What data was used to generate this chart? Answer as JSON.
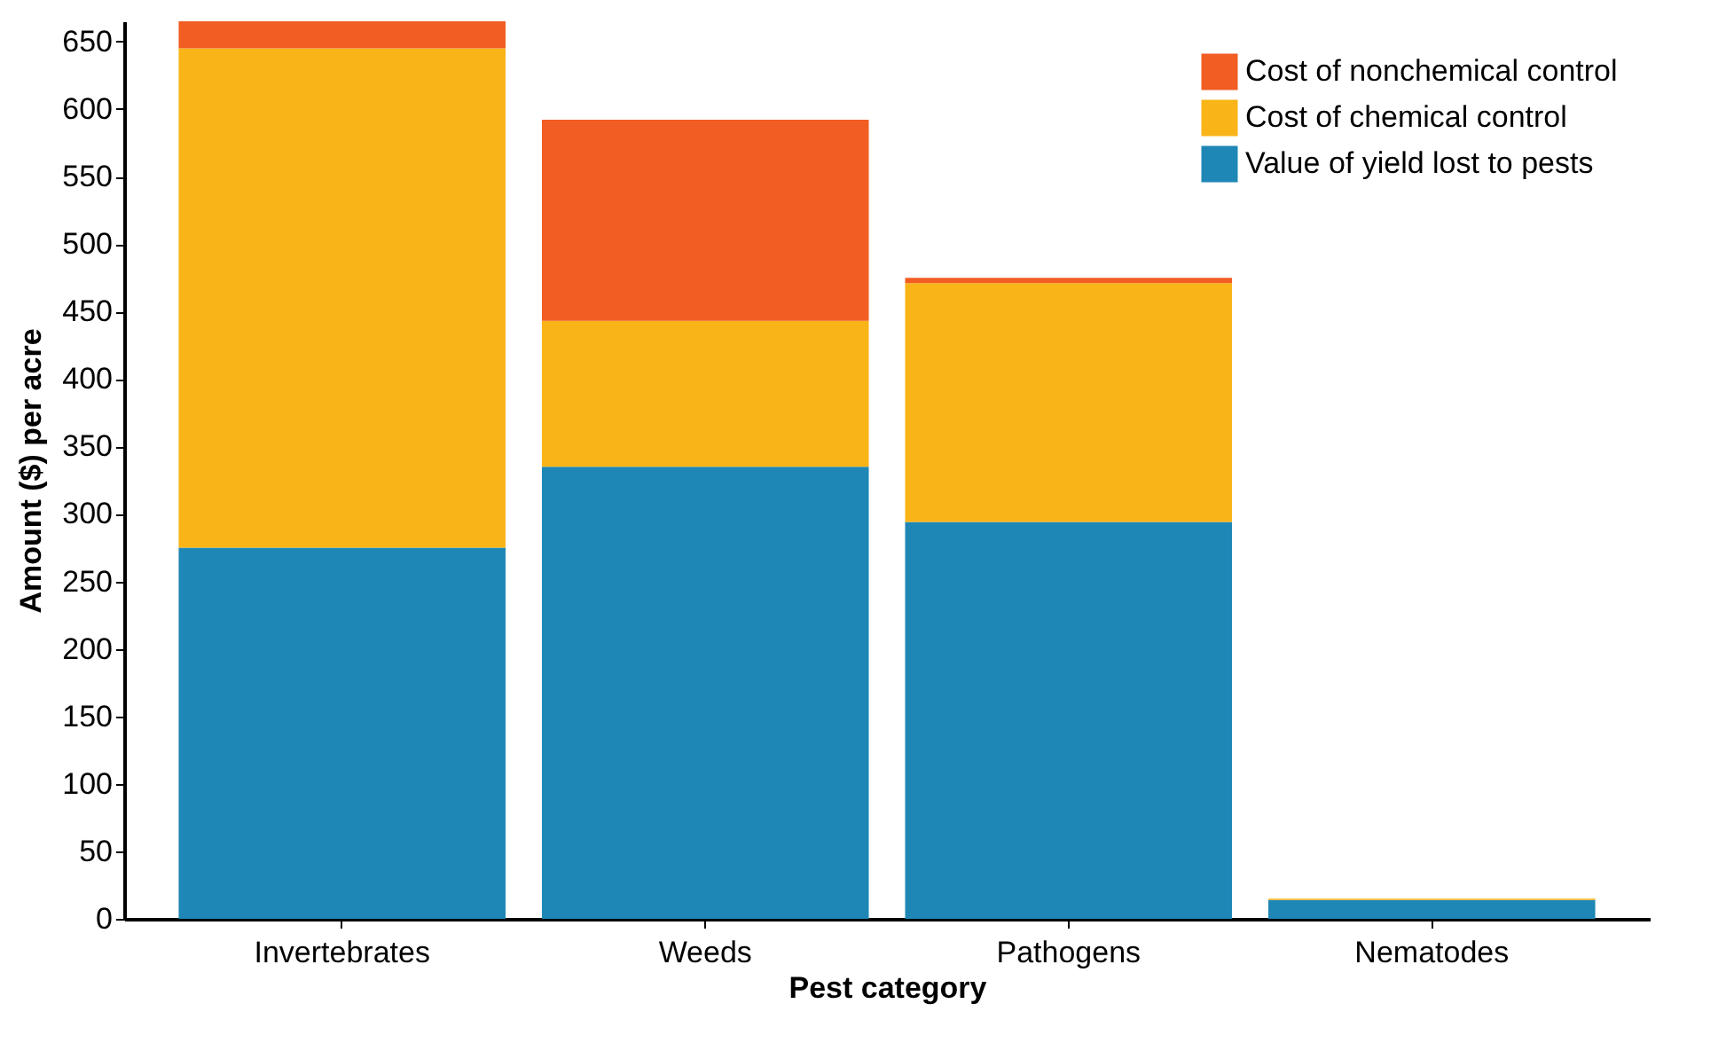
{
  "chart_data": {
    "type": "bar",
    "stacked": true,
    "xlabel": "Pest category",
    "ylabel": "Amount ($) per acre",
    "categories": [
      "Invertebrates",
      "Weeds",
      "Pathogens",
      "Nematodes"
    ],
    "series": [
      {
        "name": "Value of yield lost to pests",
        "color": "#1f87b6",
        "values": [
          275,
          335,
          294,
          14
        ]
      },
      {
        "name": "Cost of chemical control",
        "color": "#f9b418",
        "values": [
          370,
          108,
          177,
          1
        ]
      },
      {
        "name": "Cost of nonchemical control",
        "color": "#f15d22",
        "values": [
          20,
          149,
          4,
          0
        ]
      }
    ],
    "ylim": [
      0,
      665
    ],
    "yticks": [
      0,
      50,
      100,
      150,
      200,
      250,
      300,
      350,
      400,
      450,
      500,
      550,
      600,
      650
    ],
    "grid": false,
    "legend": "top right"
  }
}
